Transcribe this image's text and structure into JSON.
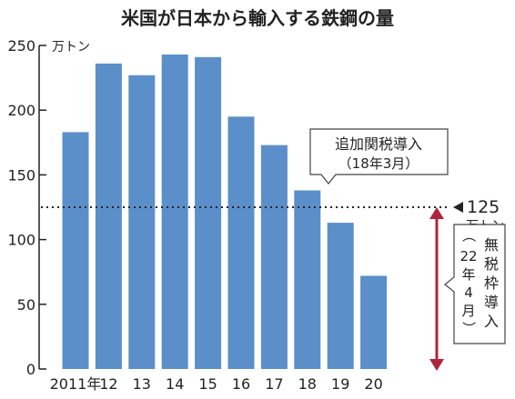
{
  "chart_data": {
    "type": "bar",
    "title": "米国が日本から輸入する鉄鋼の量",
    "unit": "万トン",
    "categories": [
      "2011年",
      "12",
      "13",
      "14",
      "15",
      "16",
      "17",
      "18",
      "19",
      "20"
    ],
    "values": [
      183,
      236,
      227,
      243,
      241,
      195,
      173,
      138,
      113,
      72
    ],
    "ylim": [
      0,
      250
    ],
    "yticks": [
      0,
      50,
      100,
      150,
      200,
      250
    ],
    "grid": false,
    "bar_color": "#5b8fc9",
    "reference_line": {
      "value": 125,
      "label": "125",
      "unit": "万トン",
      "style": "dotted"
    },
    "annotations": {
      "tariff": {
        "line1": "追加関税導入",
        "line2": "（18年3月）"
      },
      "quota": {
        "line1": [
          "無",
          "税",
          "枠",
          "導",
          "入"
        ],
        "line2": [
          "（",
          "22",
          "年",
          "4",
          "月",
          "）"
        ]
      }
    },
    "arrow_color": "#b0243b"
  }
}
